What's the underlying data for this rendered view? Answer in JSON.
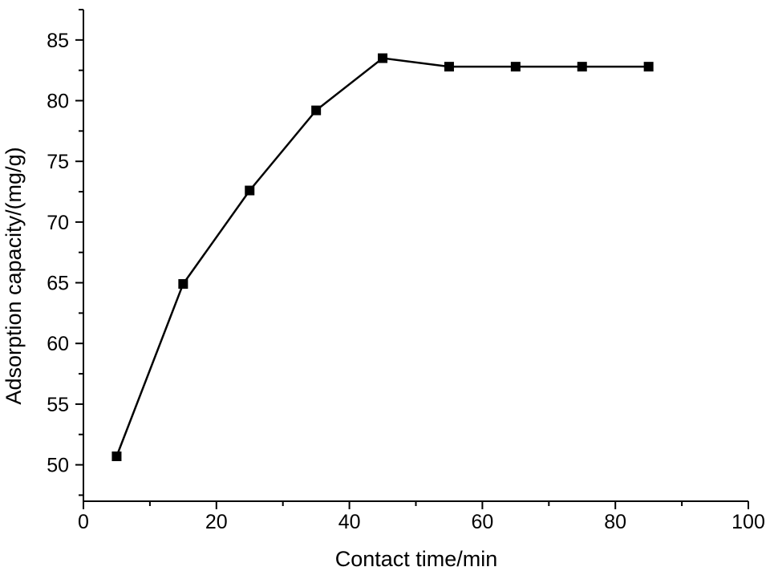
{
  "chart_data": {
    "type": "line",
    "title": "",
    "xlabel": "Contact time/min",
    "ylabel": "Adsorption capacity/(mg/g)",
    "xlim": [
      0,
      100
    ],
    "ylim": [
      47,
      87.5
    ],
    "x_ticks": [
      0,
      20,
      40,
      60,
      80,
      100
    ],
    "y_ticks": [
      50,
      55,
      60,
      65,
      70,
      75,
      80,
      85
    ],
    "x_minor_step": 10,
    "y_minor_step": 2.5,
    "grid": false,
    "legend": "none",
    "marker": "square",
    "color": "#000000",
    "series": [
      {
        "x": [
          5,
          15,
          25,
          35,
          45,
          55,
          65,
          75,
          85
        ],
        "y": [
          50.7,
          64.9,
          72.6,
          79.2,
          83.5,
          82.8,
          82.8,
          82.8,
          82.8
        ]
      }
    ]
  }
}
